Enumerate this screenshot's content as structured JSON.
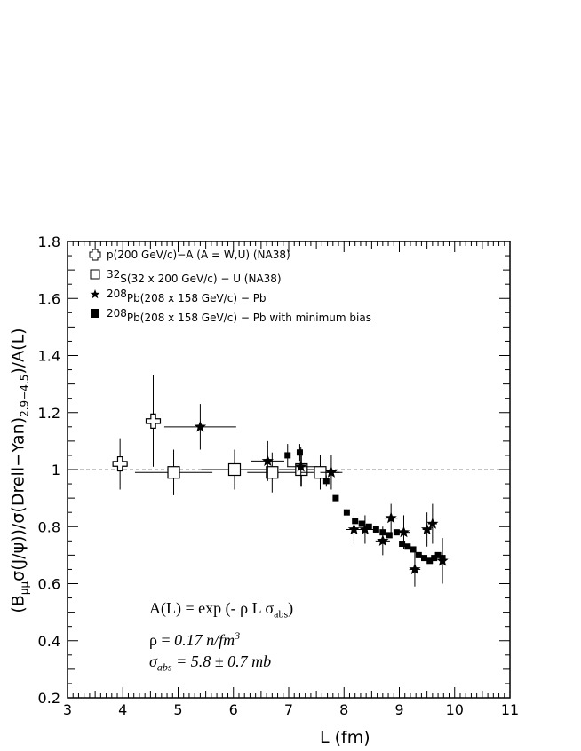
{
  "chart_data": {
    "type": "scatter",
    "xlabel": "L (fm)",
    "ylabel": "(B_{μμ}σ(J/ψ))/σ(Drell−Yan)_{2.9−4.5})/A(L)",
    "xlim": [
      3,
      11
    ],
    "ylim": [
      0.2,
      1.8
    ],
    "x_ticks": [
      "3",
      "4",
      "5",
      "6",
      "7",
      "8",
      "9",
      "10",
      "11"
    ],
    "y_ticks": [
      "0.2",
      "0.4",
      "0.6",
      "0.8",
      "1",
      "1.2",
      "1.4",
      "1.6",
      "1.8"
    ],
    "reference_line": 1.0,
    "legend_position": "top-left",
    "series": [
      {
        "name": "p(200 GeV/c)−A (A = W,U) (NA38)",
        "marker": "open-cross",
        "points": [
          {
            "x": 3.95,
            "y": 1.02,
            "xerr": 0.12,
            "yerr": 0.09
          },
          {
            "x": 4.55,
            "y": 1.17,
            "xerr": 0.12,
            "yerr": 0.16
          }
        ]
      },
      {
        "name": "32S(32 x 200 GeV/c) − U (NA38)",
        "marker": "open-square",
        "points": [
          {
            "x": 4.92,
            "y": 0.99,
            "xerr": 0.7,
            "yerr": 0.08
          },
          {
            "x": 6.02,
            "y": 1.0,
            "xerr": 0.6,
            "yerr": 0.07
          },
          {
            "x": 6.7,
            "y": 0.99,
            "xerr": 0.45,
            "yerr": 0.07
          },
          {
            "x": 7.23,
            "y": 1.0,
            "xerr": 0.4,
            "yerr": 0.06
          },
          {
            "x": 7.57,
            "y": 0.99,
            "xerr": 0.35,
            "yerr": 0.06
          }
        ]
      },
      {
        "name": "208Pb(208 x 158 GeV/c) − Pb",
        "marker": "star",
        "points": [
          {
            "x": 5.4,
            "y": 1.15,
            "xerr": 0.65,
            "yerr": 0.08
          },
          {
            "x": 6.62,
            "y": 1.03,
            "xerr": 0.3,
            "yerr": 0.07
          },
          {
            "x": 7.22,
            "y": 1.01,
            "xerr": 0.25,
            "yerr": 0.07
          },
          {
            "x": 7.77,
            "y": 0.99,
            "xerr": 0.2,
            "yerr": 0.06
          },
          {
            "x": 8.18,
            "y": 0.79,
            "xerr": 0.15,
            "yerr": 0.05
          },
          {
            "x": 8.38,
            "y": 0.79,
            "xerr": 0.15,
            "yerr": 0.05
          },
          {
            "x": 8.7,
            "y": 0.75,
            "xerr": 0.13,
            "yerr": 0.05
          },
          {
            "x": 8.85,
            "y": 0.83,
            "xerr": 0.12,
            "yerr": 0.05
          },
          {
            "x": 9.08,
            "y": 0.78,
            "xerr": 0.12,
            "yerr": 0.06
          },
          {
            "x": 9.28,
            "y": 0.65,
            "xerr": 0.1,
            "yerr": 0.06
          },
          {
            "x": 9.5,
            "y": 0.79,
            "xerr": 0.08,
            "yerr": 0.06
          },
          {
            "x": 9.6,
            "y": 0.81,
            "xerr": 0.08,
            "yerr": 0.07
          },
          {
            "x": 9.78,
            "y": 0.68,
            "xerr": 0.05,
            "yerr": 0.08
          }
        ]
      },
      {
        "name": "208Pb(208 x 158 GeV/c) − Pb with minimum bias",
        "marker": "filled-square",
        "points": [
          {
            "x": 6.98,
            "y": 1.05,
            "yerr": 0.04
          },
          {
            "x": 7.2,
            "y": 1.06,
            "yerr": 0.03
          },
          {
            "x": 7.68,
            "y": 0.96,
            "yerr": 0.02
          },
          {
            "x": 7.85,
            "y": 0.9
          },
          {
            "x": 8.05,
            "y": 0.85
          },
          {
            "x": 8.2,
            "y": 0.82
          },
          {
            "x": 8.32,
            "y": 0.81
          },
          {
            "x": 8.45,
            "y": 0.8
          },
          {
            "x": 8.58,
            "y": 0.79
          },
          {
            "x": 8.7,
            "y": 0.78
          },
          {
            "x": 8.82,
            "y": 0.77
          },
          {
            "x": 8.95,
            "y": 0.78
          },
          {
            "x": 9.05,
            "y": 0.74
          },
          {
            "x": 9.15,
            "y": 0.73
          },
          {
            "x": 9.25,
            "y": 0.72
          },
          {
            "x": 9.35,
            "y": 0.7
          },
          {
            "x": 9.45,
            "y": 0.69
          },
          {
            "x": 9.55,
            "y": 0.68
          },
          {
            "x": 9.63,
            "y": 0.69
          },
          {
            "x": 9.7,
            "y": 0.7
          },
          {
            "x": 9.78,
            "y": 0.69
          }
        ]
      }
    ]
  },
  "legend": {
    "entries": [
      {
        "pre": "",
        "sup": "",
        "text": "p(200 GeV/c)−A (A = W,U) (NA38)"
      },
      {
        "pre": "",
        "sup": "32",
        "text": "S(32 x 200 GeV/c) − U (NA38)"
      },
      {
        "pre": "",
        "sup": "208",
        "text": "Pb(208 x 158 GeV/c) − Pb"
      },
      {
        "pre": "",
        "sup": "208",
        "text": "Pb(208 x 158 GeV/c) − Pb with minimum bias"
      }
    ]
  },
  "annotation": {
    "line1_a": "A(L) =  exp (- ρ L σ",
    "line1_sub": "abs",
    "line1_b": ")",
    "line2_a": "ρ = ",
    "line2_b": "0.17 n/fm",
    "line2_sup": "3",
    "line3_a": "σ",
    "line3_sub": "abs",
    "line3_b": " = 5.8  ± ",
    "line3_c": "0.7 mb"
  },
  "labels": {
    "x": "L (fm)",
    "y_parts": [
      "(B",
      "μμ",
      "σ(J/ψ))/σ(Drell−Yan)",
      "2.9−4.5",
      ")/A(L)"
    ]
  }
}
